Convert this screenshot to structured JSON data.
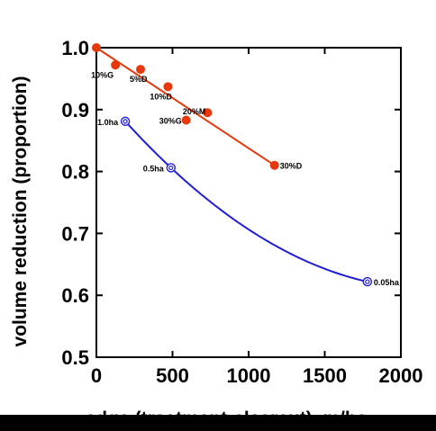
{
  "chart_data": {
    "type": "scatter",
    "title": "",
    "xlabel": "edge (treatment-clearcut), m/ha",
    "ylabel": "volume reduction (proportion)",
    "xlim": [
      0,
      2000
    ],
    "ylim": [
      0.5,
      1.0
    ],
    "x_ticks": [
      "0",
      "500",
      "1000",
      "1500",
      "2000"
    ],
    "y_ticks": [
      "0.5",
      "0.6",
      "0.7",
      "0.8",
      "0.9",
      "1.0"
    ],
    "grid": false,
    "colors": {
      "dispersed": "#e5390b",
      "aggregated": "#1f1fd6",
      "axis": "#000000"
    },
    "series": [
      {
        "marker": "filled-circle",
        "color": "#e5390b",
        "trend": "linear",
        "points": [
          {
            "x": 0,
            "y": 1.0,
            "label": ""
          },
          {
            "x": 125,
            "y": 0.972,
            "label": "10%G"
          },
          {
            "x": 290,
            "y": 0.965,
            "label": "5%D"
          },
          {
            "x": 470,
            "y": 0.937,
            "label": "10%D"
          },
          {
            "x": 590,
            "y": 0.883,
            "label": "30%G"
          },
          {
            "x": 730,
            "y": 0.895,
            "label": "20%M"
          },
          {
            "x": 1170,
            "y": 0.81,
            "label": "30%D"
          }
        ],
        "trendline": {
          "x": [
            0,
            1170
          ],
          "y": [
            1.0,
            0.81
          ]
        }
      },
      {
        "marker": "open-double-circle",
        "color": "#1f1fd6",
        "trend": "curve",
        "points": [
          {
            "x": 190,
            "y": 0.881,
            "label": "1.0ha"
          },
          {
            "x": 490,
            "y": 0.806,
            "label": "0.5ha"
          },
          {
            "x": 1780,
            "y": 0.622,
            "label": "0.05ha"
          }
        ]
      }
    ]
  }
}
